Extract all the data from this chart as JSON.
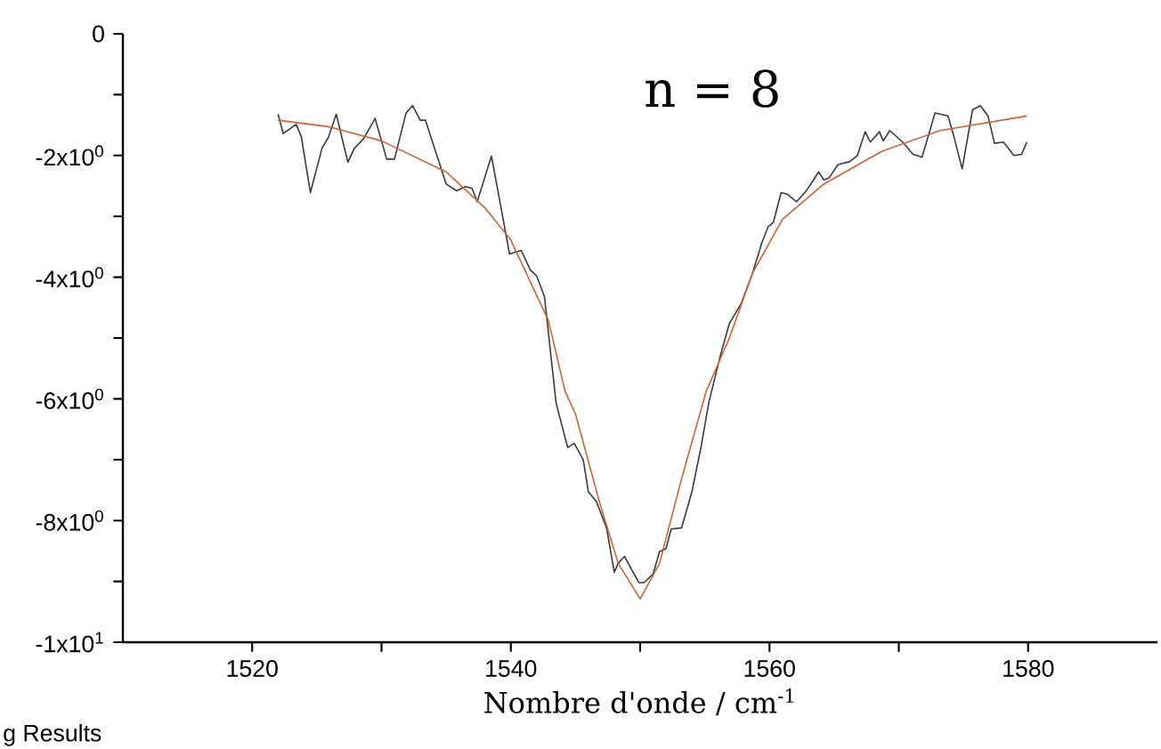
{
  "chart_data": {
    "type": "line",
    "xlabel": "Nombre d'onde / cm$^{-1}$",
    "annotations": [
      "n = 8",
      "g Results"
    ],
    "xlim": [
      1510,
      1590
    ],
    "ylim": [
      -10,
      0
    ],
    "xticks": [
      1520,
      {
        "value": 1530,
        "label": null
      },
      1540,
      {
        "value": 1550,
        "label": null
      },
      1560,
      {
        "value": 1570,
        "label": null
      },
      1580
    ],
    "yticks": [
      0,
      {
        "value": -1,
        "label": null
      },
      {
        "value": -2,
        "label": "-2x10$^{0}$"
      },
      {
        "value": -3,
        "label": null
      },
      {
        "value": -4,
        "label": "-4x10$^{0}$"
      },
      {
        "value": -5,
        "label": null
      },
      {
        "value": -6,
        "label": "-6x10$^{0}$"
      },
      {
        "value": -7,
        "label": null
      },
      {
        "value": -8,
        "label": "-8x10$^{0}$"
      },
      {
        "value": -9,
        "label": null
      },
      {
        "value": -10,
        "label": "-1x10$^{1}$"
      }
    ],
    "grid": false,
    "marker": "none",
    "line_style": "solid",
    "series": [
      {
        "color": "#3a3a3a",
        "x": [
          1522.0,
          1522.4,
          1523.4,
          1523.8,
          1524.5,
          1525.4,
          1525.9,
          1526.5,
          1527.4,
          1527.9,
          1528.6,
          1529.5,
          1530.4,
          1531.0,
          1531.9,
          1532.4,
          1533.0,
          1533.4,
          1535.0,
          1535.8,
          1536.5,
          1537.0,
          1537.4,
          1538.5,
          1539.2,
          1539.9,
          1540.8,
          1541.5,
          1542.0,
          1542.6,
          1543.1,
          1543.5,
          1544.4,
          1544.9,
          1545.6,
          1546.0,
          1546.6,
          1547.4,
          1548.0,
          1548.3,
          1548.8,
          1549.2,
          1549.9,
          1550.3,
          1551.0,
          1551.5,
          1552.0,
          1552.4,
          1553.2,
          1554.0,
          1554.7,
          1555.3,
          1556.2,
          1556.9,
          1557.8,
          1558.7,
          1559.4,
          1559.9,
          1560.3,
          1560.9,
          1561.4,
          1562.1,
          1562.8,
          1563.2,
          1563.8,
          1564.2,
          1564.6,
          1565.3,
          1566.2,
          1566.8,
          1567.4,
          1567.8,
          1568.5,
          1568.8,
          1569.3,
          1570.3,
          1571.1,
          1571.8,
          1572.8,
          1573.8,
          1574.2,
          1574.9,
          1575.7,
          1576.3,
          1576.9,
          1577.4,
          1578.1,
          1578.9,
          1579.5,
          1579.9
        ],
        "values": [
          -1.32,
          -1.64,
          -1.49,
          -1.69,
          -2.61,
          -1.88,
          -1.7,
          -1.32,
          -2.11,
          -1.88,
          -1.73,
          -1.39,
          -2.06,
          -2.06,
          -1.3,
          -1.18,
          -1.42,
          -1.42,
          -2.47,
          -2.58,
          -2.51,
          -2.54,
          -2.76,
          -2.01,
          -2.81,
          -3.62,
          -3.56,
          -3.88,
          -3.98,
          -4.32,
          -5.29,
          -6.07,
          -6.8,
          -6.73,
          -7.0,
          -7.53,
          -7.68,
          -8.12,
          -8.85,
          -8.7,
          -8.59,
          -8.75,
          -9.02,
          -9.02,
          -8.88,
          -8.51,
          -8.46,
          -8.14,
          -8.12,
          -7.53,
          -6.8,
          -6.07,
          -5.29,
          -4.76,
          -4.44,
          -3.93,
          -3.44,
          -3.17,
          -3.1,
          -2.61,
          -2.64,
          -2.76,
          -2.59,
          -2.47,
          -2.27,
          -2.4,
          -2.37,
          -2.15,
          -2.1,
          -2.0,
          -1.61,
          -1.78,
          -1.61,
          -1.76,
          -1.59,
          -1.78,
          -1.98,
          -2.03,
          -1.3,
          -1.35,
          -1.64,
          -2.22,
          -1.25,
          -1.18,
          -1.35,
          -1.8,
          -1.78,
          -2.0,
          -1.98,
          -1.78
        ]
      },
      {
        "color": "#c8643c",
        "x": [
          1522.0,
          1526.0,
          1530.0,
          1535.0,
          1538.0,
          1540.0,
          1542.9,
          1544.2,
          1545.0,
          1546.9,
          1548.3,
          1550.0,
          1551.5,
          1553.3,
          1555.1,
          1556.9,
          1558.7,
          1561.0,
          1564.2,
          1568.7,
          1573.2,
          1579.9
        ],
        "values": [
          -1.42,
          -1.53,
          -1.76,
          -2.27,
          -2.86,
          -3.39,
          -4.71,
          -5.88,
          -6.25,
          -7.73,
          -8.7,
          -9.29,
          -8.7,
          -7.24,
          -5.88,
          -5.0,
          -3.93,
          -3.05,
          -2.47,
          -1.93,
          -1.59,
          -1.35
        ]
      }
    ]
  }
}
